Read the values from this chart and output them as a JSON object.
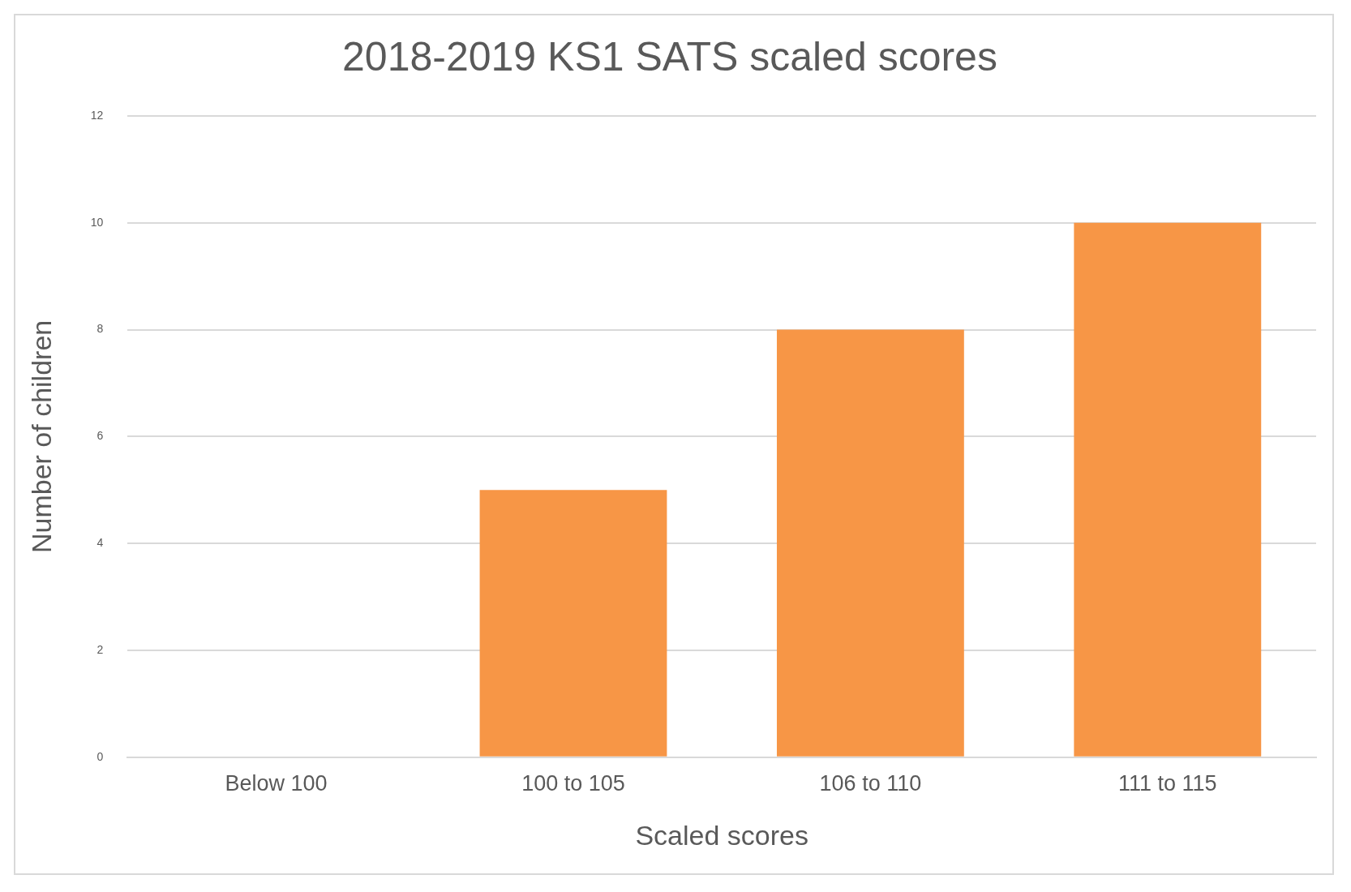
{
  "chart_data": {
    "type": "bar",
    "title": "2018-2019 KS1 SATS scaled scores",
    "xlabel": "Scaled scores",
    "ylabel": "Number of children",
    "categories": [
      "Below 100",
      "100 to 105",
      "106 to 110",
      "111 to 115"
    ],
    "values": [
      0,
      5,
      8,
      10
    ],
    "color": "#f79646",
    "ylim": [
      0,
      12
    ],
    "yticks": [
      0,
      2,
      4,
      6,
      8,
      10,
      12
    ],
    "grid": "y"
  }
}
